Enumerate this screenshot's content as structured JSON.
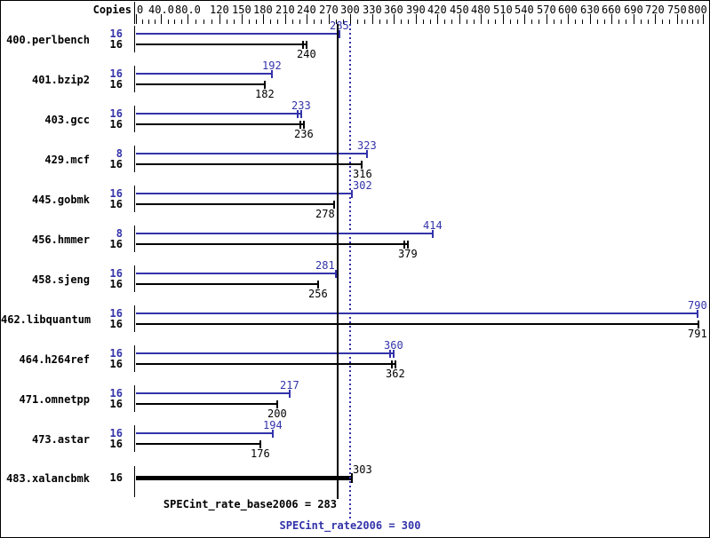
{
  "header": {
    "copies_label": "Copies"
  },
  "colors": {
    "peak_blue": "#3333aa",
    "base_black": "#000000",
    "background": "#ffffff"
  },
  "axis": {
    "ticks": [
      {
        "label": "0",
        "value": 0
      },
      {
        "label": "40.0",
        "value": 40
      },
      {
        "label": "80.0",
        "value": 80
      },
      {
        "label": "120",
        "value": 120
      },
      {
        "label": "150",
        "value": 150
      },
      {
        "label": "180",
        "value": 180
      },
      {
        "label": "210",
        "value": 210
      },
      {
        "label": "240",
        "value": 240
      },
      {
        "label": "270",
        "value": 270
      },
      {
        "label": "300",
        "value": 300
      },
      {
        "label": "330",
        "value": 330
      },
      {
        "label": "360",
        "value": 360
      },
      {
        "label": "390",
        "value": 390
      },
      {
        "label": "420",
        "value": 420
      },
      {
        "label": "450",
        "value": 450
      },
      {
        "label": "480",
        "value": 480
      },
      {
        "label": "510",
        "value": 510
      },
      {
        "label": "540",
        "value": 540
      },
      {
        "label": "570",
        "value": 570
      },
      {
        "label": "600",
        "value": 600
      },
      {
        "label": "630",
        "value": 630
      },
      {
        "label": "660",
        "value": 660
      },
      {
        "label": "690",
        "value": 690
      },
      {
        "label": "720",
        "value": 720
      },
      {
        "label": "750",
        "value": 750
      },
      {
        "label": "800",
        "value": 800
      }
    ],
    "minor_step": 10,
    "range": [
      0,
      800
    ]
  },
  "rows": [
    {
      "name": "400.perlbench",
      "bars": [
        {
          "type": "peak",
          "copies": "16",
          "value": 285,
          "marks": 1
        },
        {
          "type": "base",
          "copies": "16",
          "value": 240,
          "marks": 2
        }
      ]
    },
    {
      "name": "401.bzip2",
      "bars": [
        {
          "type": "peak",
          "copies": "16",
          "value": 192,
          "marks": 1
        },
        {
          "type": "base",
          "copies": "16",
          "value": 182,
          "marks": 1
        }
      ]
    },
    {
      "name": "403.gcc",
      "bars": [
        {
          "type": "peak",
          "copies": "16",
          "value": 233,
          "marks": 2
        },
        {
          "type": "base",
          "copies": "16",
          "value": 236,
          "marks": 2
        }
      ]
    },
    {
      "name": "429.mcf",
      "bars": [
        {
          "type": "peak",
          "copies": "8",
          "value": 323,
          "marks": 1
        },
        {
          "type": "base",
          "copies": "16",
          "value": 316,
          "marks": 1
        }
      ]
    },
    {
      "name": "445.gobmk",
      "bars": [
        {
          "type": "peak",
          "copies": "16",
          "value": 302,
          "marks": 1
        },
        {
          "type": "base",
          "copies": "16",
          "value": 278,
          "marks": 1
        }
      ]
    },
    {
      "name": "456.hmmer",
      "bars": [
        {
          "type": "peak",
          "copies": "8",
          "value": 414,
          "marks": 1
        },
        {
          "type": "base",
          "copies": "16",
          "value": 379,
          "marks": 2
        }
      ]
    },
    {
      "name": "458.sjeng",
      "bars": [
        {
          "type": "peak",
          "copies": "16",
          "value": 281,
          "marks": 1
        },
        {
          "type": "base",
          "copies": "16",
          "value": 256,
          "marks": 1
        }
      ]
    },
    {
      "name": "462.libquantum",
      "bars": [
        {
          "type": "peak",
          "copies": "16",
          "value": 790,
          "marks": 1
        },
        {
          "type": "base",
          "copies": "16",
          "value": 791,
          "marks": 1
        }
      ]
    },
    {
      "name": "464.h264ref",
      "bars": [
        {
          "type": "peak",
          "copies": "16",
          "value": 360,
          "marks": 2
        },
        {
          "type": "base",
          "copies": "16",
          "value": 362,
          "marks": 2
        }
      ]
    },
    {
      "name": "471.omnetpp",
      "bars": [
        {
          "type": "peak",
          "copies": "16",
          "value": 217,
          "marks": 1
        },
        {
          "type": "base",
          "copies": "16",
          "value": 200,
          "marks": 1
        }
      ]
    },
    {
      "name": "473.astar",
      "bars": [
        {
          "type": "peak",
          "copies": "16",
          "value": 194,
          "marks": 1
        },
        {
          "type": "base",
          "copies": "16",
          "value": 176,
          "marks": 1
        }
      ]
    },
    {
      "name": "483.xalancbmk",
      "bars": [
        {
          "type": "combined",
          "copies": "16",
          "value": 303,
          "marks": 1
        }
      ]
    }
  ],
  "summary": {
    "base_label": "SPECint_rate_base2006 = 283",
    "base_value": 283,
    "peak_label": "SPECint_rate2006 = 300",
    "peak_value": 300
  },
  "chart_data": {
    "type": "bar",
    "orientation": "horizontal",
    "title": "",
    "xlabel": "",
    "ylabel": "Copies",
    "categories": [
      "400.perlbench",
      "401.bzip2",
      "403.gcc",
      "429.mcf",
      "445.gobmk",
      "456.hmmer",
      "458.sjeng",
      "462.libquantum",
      "464.h264ref",
      "471.omnetpp",
      "473.astar",
      "483.xalancbmk"
    ],
    "series": [
      {
        "name": "SPECint_rate2006 (peak)",
        "color": "#3333aa",
        "copies": [
          16,
          16,
          16,
          8,
          16,
          8,
          16,
          16,
          16,
          16,
          16,
          16
        ],
        "values": [
          285,
          192,
          233,
          323,
          302,
          414,
          281,
          790,
          360,
          217,
          194,
          303
        ]
      },
      {
        "name": "SPECint_rate_base2006 (base)",
        "color": "#000000",
        "copies": [
          16,
          16,
          16,
          16,
          16,
          16,
          16,
          16,
          16,
          16,
          16,
          16
        ],
        "values": [
          240,
          182,
          236,
          316,
          278,
          379,
          256,
          791,
          362,
          200,
          176,
          303
        ]
      }
    ],
    "single_bar_categories": [
      "483.xalancbmk"
    ],
    "reference_lines": [
      {
        "label": "SPECint_rate_base2006",
        "value": 283,
        "style": "solid",
        "color": "#000000"
      },
      {
        "label": "SPECint_rate2006",
        "value": 300,
        "style": "dotted",
        "color": "#3333aa"
      }
    ],
    "axis_ticks": [
      0,
      40.0,
      80.0,
      120,
      150,
      180,
      210,
      240,
      270,
      300,
      330,
      360,
      390,
      420,
      450,
      480,
      510,
      540,
      570,
      600,
      630,
      660,
      690,
      720,
      750,
      800
    ],
    "axis_range": [
      0,
      800
    ],
    "grid": false,
    "legend_position": "none"
  }
}
